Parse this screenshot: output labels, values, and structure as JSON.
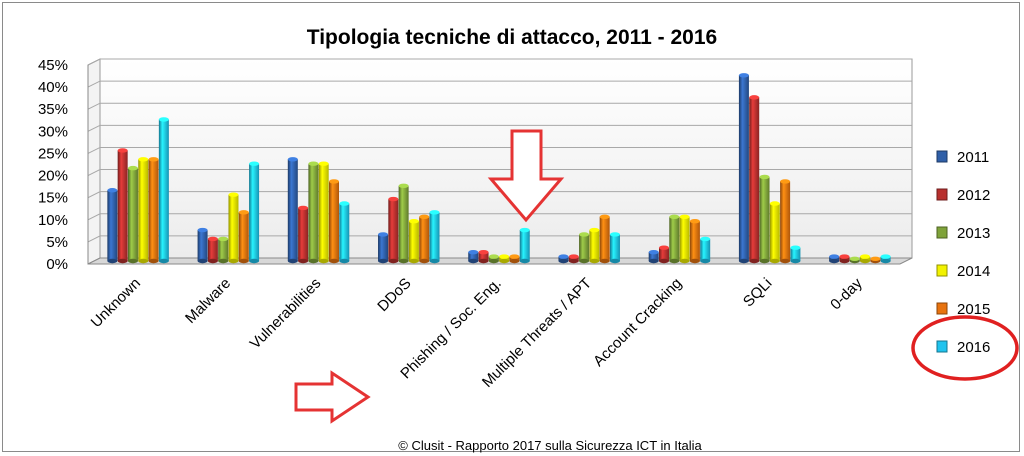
{
  "chart_data": {
    "type": "bar",
    "title": "Tipologia tecniche di attacco, 2011 - 2016",
    "xlabel": "",
    "ylabel": "",
    "ylim": [
      0,
      45
    ],
    "y_ticks": [
      "0%",
      "5%",
      "10%",
      "15%",
      "20%",
      "25%",
      "30%",
      "35%",
      "40%",
      "45%"
    ],
    "grid": true,
    "legend_position": "right",
    "categories": [
      "Unknown",
      "Malware",
      "Vulnerabilities",
      "DDoS",
      "Phishing / Soc. Eng.",
      "Multiple Threats / APT",
      "Account Cracking",
      "SQLi",
      "0-day"
    ],
    "series": [
      {
        "name": "2011",
        "color": "#2f5fa8",
        "values": [
          16,
          7,
          23,
          6,
          2,
          1,
          2,
          42,
          1
        ]
      },
      {
        "name": "2012",
        "color": "#b8302e",
        "values": [
          25,
          5,
          12,
          14,
          2,
          1,
          3,
          37,
          1
        ]
      },
      {
        "name": "2013",
        "color": "#7fa33a",
        "values": [
          21,
          5,
          22,
          17,
          1,
          6,
          10,
          19,
          0.5
        ]
      },
      {
        "name": "2014",
        "color": "#f2f200",
        "values": [
          23,
          15,
          22,
          9,
          1,
          7,
          10,
          13,
          1
        ]
      },
      {
        "name": "2015",
        "color": "#e8730f",
        "values": [
          23,
          11,
          18,
          10,
          1,
          10,
          9,
          18,
          0.5
        ]
      },
      {
        "name": "2016",
        "color": "#1fc3ee",
        "values": [
          32,
          22,
          13,
          11,
          7,
          6,
          5,
          3,
          1
        ]
      }
    ]
  },
  "footer": "© Clusit - Rapporto 2017 sulla Sicurezza ICT in Italia",
  "annotations": {
    "arrow_color": "#e53333",
    "circle_color": "#e02020"
  }
}
